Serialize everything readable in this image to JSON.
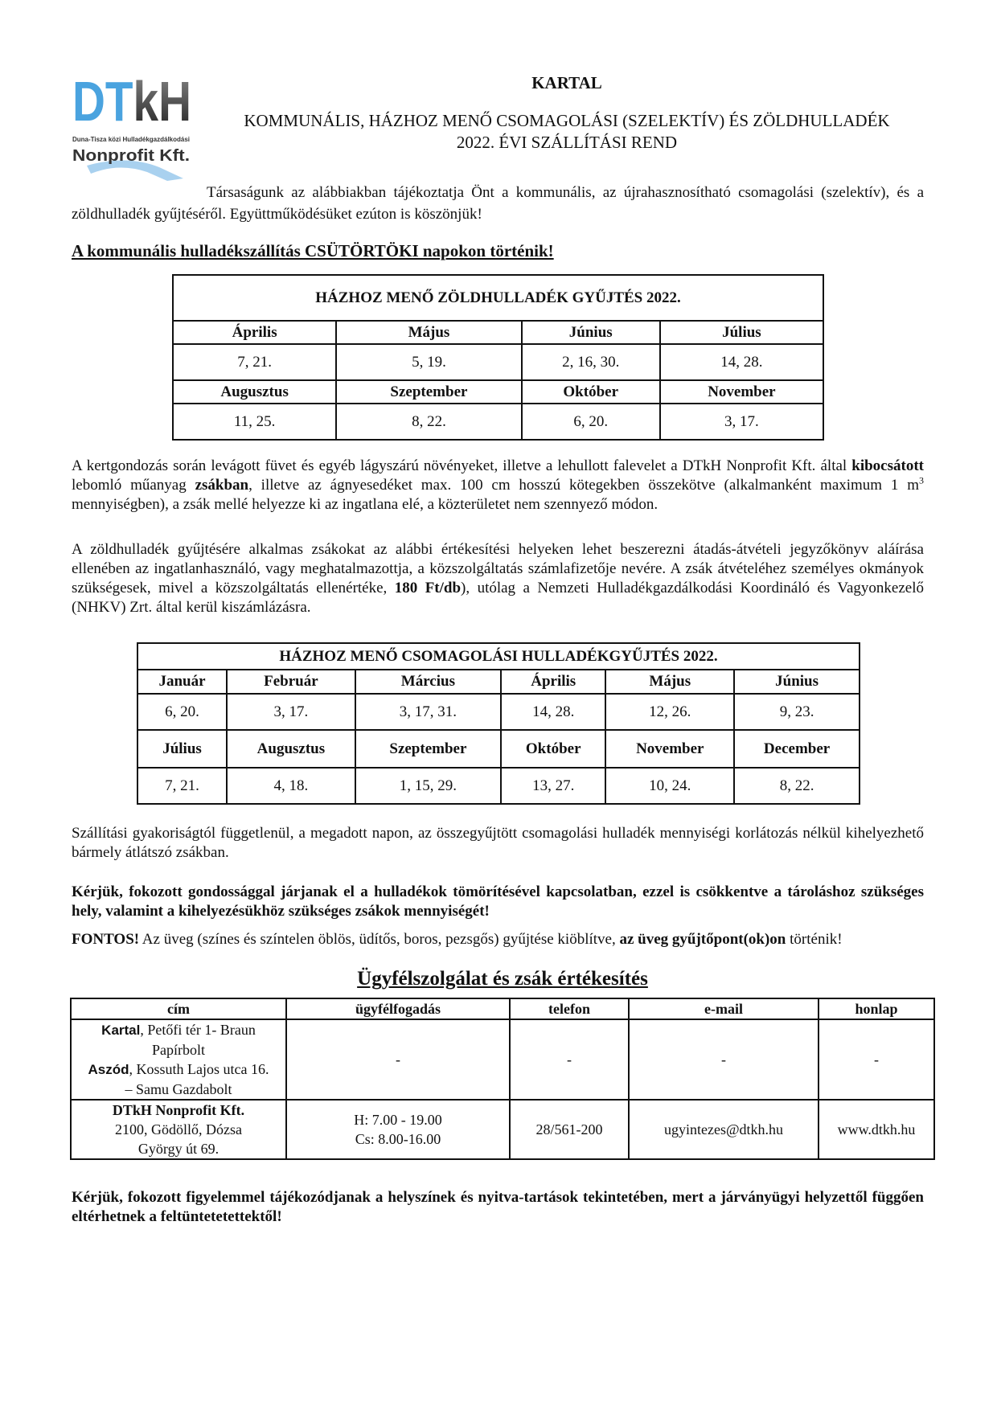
{
  "logo": {
    "text": "DTkH",
    "subtitle": "Duna-Tisza közi Hulladékgazdálkodási",
    "company": "Nonprofit Kft.",
    "colors": {
      "blue": "#4aa3df",
      "dark": "#333333"
    }
  },
  "header": {
    "town": "KARTAL",
    "title_line1": "KOMMUNÁLIS, HÁZHOZ MENŐ CSOMAGOLÁSI (SZELEKTÍV) ÉS ZÖLDHULLADÉK",
    "title_line2": "2022.  ÉVI SZÁLLÍTÁSI REND"
  },
  "intro": "Társaságunk az alábbiakban tájékoztatja Önt a kommunális, az újrahasznosítható csomagolási (szelektív), és a zöldhulladék gyűjtéséről. Együttműködésüket ezúton is köszönjük!",
  "kommunalis_heading": "A kommunális hulladékszállítás CSÜTÖRTÖKI napokon történik!",
  "green_table": {
    "title": "HÁZHOZ MENŐ ZÖLDHULLADÉK GYŰJTÉS 2022.",
    "rows": [
      {
        "months": [
          "Április",
          "Május",
          "Június",
          "Július"
        ],
        "dates": [
          "7, 21.",
          "5, 19.",
          "2, 16, 30.",
          "14, 28."
        ]
      },
      {
        "months": [
          "Augusztus",
          "Szeptember",
          "Október",
          "November"
        ],
        "dates": [
          "11, 25.",
          "8, 22.",
          "6, 20.",
          "3, 17."
        ]
      }
    ]
  },
  "para1": {
    "a": "A kertgondozás során levágott füvet és egyéb lágyszárú növényeket, illetve a lehullott falevelet a DTkH Nonprofit Kft. által ",
    "b1": "kibocsátott",
    "c": " lebomló műanyag ",
    "b2": "zsákban",
    "d": ", illetve az ágnyesedéket max. 100 cm hosszú kötegekben összekötve (alkalmanként maximum 1 m",
    "sup": "3",
    "e": " mennyiségben), a zsák mellé helyezze ki az ingatlana elé, a közterületet nem szennyező módon."
  },
  "para2": {
    "a": "A zöldhulladék gyűjtésére alkalmas zsákokat az alábbi értékesítési helyeken lehet beszerezni átadás-átvételi jegyzőkönyv aláírása ellenében az ingatlanhasználó, vagy meghatalmazottja, a közszolgáltatás számlafizetője nevére. A zsák átvételéhez személyes okmányok szükségesek, mivel a közszolgáltatás ellenértéke, ",
    "b": "180 Ft/db",
    "c": "), utólag a Nemzeti Hulladékgazdálkodási Koordináló és Vagyonkezelő (NHKV) Zrt. által kerül kiszámlázásra."
  },
  "pack_table": {
    "title": "HÁZHOZ MENŐ CSOMAGOLÁSI HULLADÉKGYŰJTÉS 2022.",
    "rows": [
      {
        "months": [
          "Január",
          "Február",
          "Március",
          "Április",
          "Május",
          "Június"
        ],
        "dates": [
          "6, 20.",
          "3, 17.",
          "3, 17, 31.",
          "14, 28.",
          "12, 26.",
          "9, 23."
        ]
      },
      {
        "months": [
          "Július",
          "Augusztus",
          "Szeptember",
          "Október",
          "November",
          "December"
        ],
        "dates": [
          "7, 21.",
          "4, 18.",
          "1, 15, 29.",
          "13, 27.",
          "10, 24.",
          "8, 22."
        ]
      }
    ]
  },
  "para3": "Szállítási gyakoriságtól függetlenül, a megadott napon, az összegyűjtött csomagolási hulladék mennyiségi korlátozás nélkül kihelyezhető bármely átlátszó zsákban.",
  "para4": "Kérjük, fokozott gondossággal járjanak el a hulladékok tömörítésével kapcsolatban, ezzel is csökkentve a tároláshoz szükséges hely, valamint a kihelyezésükhöz szükséges zsákok mennyiségét!",
  "fontos": {
    "label": "FONTOS!",
    "a": " Az üveg (színes és színtelen öblös, üdítős, boros, pezsgős) gyűjtése kiöblítve, ",
    "b": "az üveg gyűjtőpont(ok)on",
    "c": " történik!"
  },
  "service": {
    "heading": "Ügyfélszolgálat és zsák értékesítés",
    "headers": [
      "cím",
      "ügyfélfogadás",
      "telefon",
      "e-mail",
      "honlap"
    ],
    "row1": {
      "place1": "Kartal",
      "addr1": ", Petőfi tér 1- Braun Papírbolt",
      "place2": "Aszód",
      "addr2": ", Kossuth Lajos utca 16. – Samu Gazdabolt",
      "hours": "-",
      "phone": "-",
      "email": "-",
      "web": "-"
    },
    "row2": {
      "name": "DTkH Nonprofit Kft.",
      "addr": "2100, Gödöllő, Dózsa György út 69.",
      "hours1": "H: 7.00 - 19.00",
      "hours2": "Cs: 8.00-16.00",
      "phone": "28/561-200",
      "email": "ugyintezes@dtkh.hu",
      "web": "www.dtkh.hu"
    }
  },
  "closing": "Kérjük, fokozott figyelemmel tájékozódjanak a helyszínek és nyitva-tartások tekintetében, mert a járványügyi helyzettől függően eltérhetnek a feltüntetetettektől!"
}
